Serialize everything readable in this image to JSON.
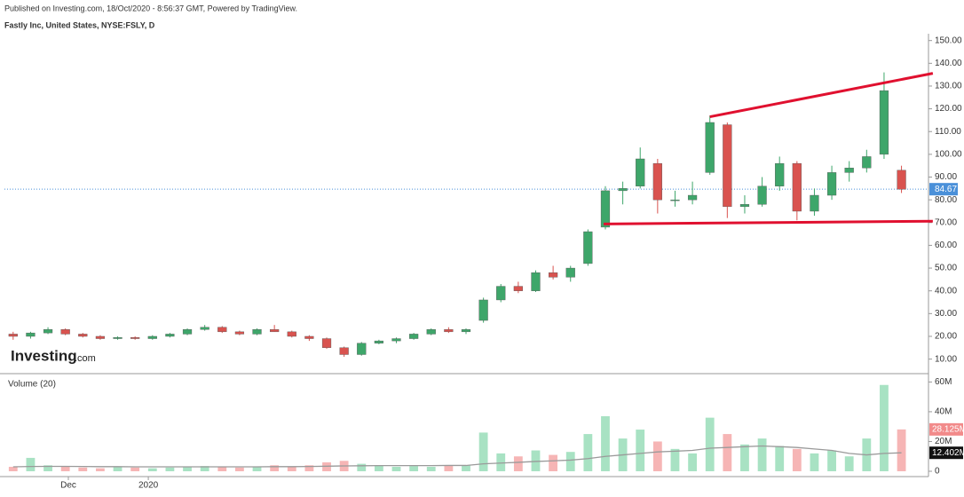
{
  "header": {
    "published": "Published on Investing.com, 18/Oct/2020 - 8:56:37 GMT, Powered by TradingView.",
    "symbol": "Fastly Inc, United States, NYSE:FSLY, D"
  },
  "logo": {
    "brand": "Investing",
    "suffix": ".com"
  },
  "chart_data": {
    "type": "candlestick",
    "up_color": "#3ea66a",
    "down_color": "#d9534f",
    "volume_up_color": "#a8e2c3",
    "volume_down_color": "#f6b5b5",
    "ma_color": "#9a9a9a",
    "trend_color": "#e0102f",
    "price_line_color": "#4a90d9",
    "xlim": [
      -0.5,
      52.5
    ],
    "xticks": [
      {
        "value": 3.17,
        "label": "Dec"
      },
      {
        "value": 7.76,
        "label": "2020"
      }
    ],
    "ylim": [
      4,
      153
    ],
    "yticks": [
      {
        "value": 10,
        "label": "10.00"
      },
      {
        "value": 20,
        "label": "20.00"
      },
      {
        "value": 30,
        "label": "30.00"
      },
      {
        "value": 40,
        "label": "40.00"
      },
      {
        "value": 50,
        "label": "50.00"
      },
      {
        "value": 60,
        "label": "60.00"
      },
      {
        "value": 70,
        "label": "70.00"
      },
      {
        "value": 80,
        "label": "80.00"
      },
      {
        "value": 90,
        "label": "90.00"
      },
      {
        "value": 100,
        "label": "100.00"
      },
      {
        "value": 110,
        "label": "110.00"
      },
      {
        "value": 120,
        "label": "120.00"
      },
      {
        "value": 130,
        "label": "130.00"
      },
      {
        "value": 140,
        "label": "140.00"
      },
      {
        "value": 150,
        "label": "150.00"
      }
    ],
    "last_price": 84.67,
    "candles": [
      [
        21,
        22,
        18.5,
        20
      ],
      [
        20,
        22,
        19,
        21.5
      ],
      [
        21.5,
        24,
        21,
        23
      ],
      [
        23,
        23.5,
        20.5,
        21
      ],
      [
        21,
        21.5,
        19.5,
        20
      ],
      [
        20,
        20.5,
        18.5,
        19
      ],
      [
        19,
        20,
        18.5,
        19.5
      ],
      [
        19.5,
        20,
        18.5,
        19
      ],
      [
        19,
        20.5,
        18.5,
        20
      ],
      [
        20,
        21.5,
        19.5,
        21
      ],
      [
        21,
        23.5,
        20.5,
        23
      ],
      [
        23,
        25,
        22.5,
        24
      ],
      [
        24,
        24.5,
        21.5,
        22
      ],
      [
        22,
        22.5,
        20.5,
        21
      ],
      [
        21,
        23.5,
        20.5,
        23
      ],
      [
        23,
        25,
        22,
        22
      ],
      [
        22,
        22.5,
        19.5,
        20
      ],
      [
        20,
        20.5,
        18,
        19
      ],
      [
        19,
        19.5,
        14.5,
        15
      ],
      [
        15,
        15.5,
        11,
        12
      ],
      [
        12,
        17.5,
        11.5,
        17
      ],
      [
        17,
        18.5,
        16.5,
        18
      ],
      [
        18,
        19.5,
        17,
        19
      ],
      [
        19,
        21.5,
        18.5,
        21
      ],
      [
        21,
        23.5,
        20.5,
        23
      ],
      [
        23,
        24,
        21.5,
        22
      ],
      [
        22,
        23.5,
        21,
        23
      ],
      [
        27,
        37,
        26,
        36
      ],
      [
        36,
        43,
        35,
        42
      ],
      [
        42,
        44,
        39,
        40
      ],
      [
        40,
        49,
        39.5,
        48
      ],
      [
        48,
        51,
        45,
        46
      ],
      [
        46,
        51,
        44,
        50
      ],
      [
        52,
        67,
        51,
        66
      ],
      [
        68,
        86,
        67,
        84
      ],
      [
        84,
        88,
        78,
        85
      ],
      [
        86,
        103,
        85,
        98
      ],
      [
        96,
        98,
        74,
        80
      ],
      [
        80,
        84,
        77,
        80
      ],
      [
        80,
        88,
        78,
        82
      ],
      [
        92,
        117,
        91,
        114
      ],
      [
        113,
        114,
        72,
        77
      ],
      [
        77,
        82,
        74,
        78
      ],
      [
        78,
        90,
        77,
        86
      ],
      [
        86,
        99,
        84,
        96
      ],
      [
        96,
        97,
        71,
        75
      ],
      [
        75,
        85,
        73,
        82
      ],
      [
        82,
        95,
        80,
        92
      ],
      [
        92,
        97,
        88,
        94
      ],
      [
        94,
        102,
        92,
        99
      ],
      [
        100,
        136,
        98,
        128
      ],
      [
        93,
        95,
        83,
        84.67
      ]
    ],
    "trendlines": [
      {
        "x": [
          40,
          52.8
        ],
        "y": [
          116.5,
          135.6
        ]
      },
      {
        "x": [
          33.9,
          52.8
        ],
        "y": [
          69.4,
          70.6
        ]
      }
    ],
    "volume": {
      "name": "Volume (20)",
      "ylim": [
        0,
        65
      ],
      "yticks": [
        0,
        {
          "value": 20,
          "label": "20M"
        },
        {
          "value": 40,
          "label": "40M"
        },
        {
          "value": 60,
          "label": "60M"
        }
      ],
      "values": [
        3,
        9,
        4,
        3,
        2.5,
        2,
        3,
        2.5,
        2,
        2.5,
        3,
        3.5,
        3,
        2.5,
        3,
        4,
        3,
        4,
        6,
        7,
        5,
        4,
        3,
        3.5,
        3,
        4,
        4,
        26,
        12,
        10,
        14,
        11,
        13,
        25,
        37,
        22,
        28,
        20,
        15,
        12,
        36,
        25,
        18,
        22,
        17,
        15,
        12,
        14,
        10,
        22,
        58,
        28.125
      ],
      "last_label": "28.125M",
      "ma_values": [
        3,
        3.2,
        3.3,
        3.3,
        3.2,
        3.1,
        3.1,
        3,
        3,
        3,
        3,
        3,
        3,
        3,
        3,
        3.1,
        3.1,
        3.2,
        3.4,
        3.6,
        3.7,
        3.8,
        3.8,
        3.8,
        3.8,
        3.9,
        3.9,
        5,
        5.5,
        6,
        6.6,
        7,
        7.5,
        8.5,
        10,
        11,
        12,
        13,
        13.5,
        14,
        15.5,
        16,
        16.5,
        17,
        16.5,
        16,
        15,
        14,
        12,
        11,
        12,
        12.402
      ],
      "ma_last_label": "12.402M"
    }
  }
}
